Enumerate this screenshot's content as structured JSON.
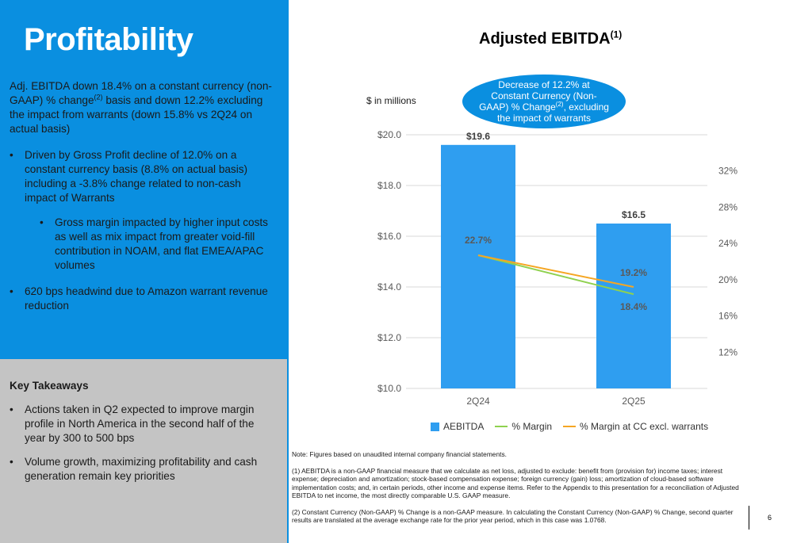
{
  "slide": {
    "title": "Profitability",
    "page_number": "6",
    "colors": {
      "accent_blue": "#0a8fe0",
      "panel_grey": "#c4c4c4",
      "bar": "#2f9ef0",
      "margin_line": "#8fd14f",
      "cc_line": "#f5a623"
    }
  },
  "summary": {
    "intro_1": "Adj. EBITDA down 18.4% on a constant currency (non-GAAP) % change",
    "intro_sup": "(2)",
    "intro_2": " basis and down 12.2% excluding the impact from warrants (down 15.8% vs 2Q24 on actual basis)",
    "bullet_1": "Driven by Gross Profit decline of 12.0% on a constant currency basis (8.8% on actual basis) including a -3.8% change related to non-cash impact of Warrants",
    "sub_bullet_1": "Gross margin impacted by higher input costs as well as mix impact from greater void-fill contribution in NOAM, and flat EMEA/APAC volumes",
    "bullet_2": "620 bps headwind due to Amazon warrant revenue reduction"
  },
  "takeaways": {
    "title": "Key Takeaways",
    "items": [
      "Actions taken in Q2 expected to improve margin profile in North America in the second half of the year by 300 to 500 bps",
      "Volume growth, maximizing profitability and cash generation remain key priorities"
    ]
  },
  "chart_header": {
    "title": "Adjusted EBITDA",
    "title_sup": "(1)",
    "units": "$ in millions",
    "callout_1": "Decrease of 12.2% at Constant Currency (Non-GAAP) % Change",
    "callout_sup": "(2)",
    "callout_2": ", excluding the impact of warrants"
  },
  "chart_data": {
    "type": "bar",
    "categories": [
      "2Q24",
      "2Q25"
    ],
    "series": [
      {
        "name": "AEBITDA",
        "type": "bar",
        "axis": "left",
        "values": [
          19.6,
          16.5
        ],
        "labels": [
          "$19.6",
          "$16.5"
        ]
      },
      {
        "name": "% Margin",
        "type": "line",
        "axis": "right",
        "values": [
          22.7,
          18.4
        ],
        "labels": [
          "22.7%",
          "18.4%"
        ]
      },
      {
        "name": "% Margin at CC excl. warrants",
        "type": "line",
        "axis": "right",
        "values": [
          22.7,
          19.2
        ],
        "labels": [
          "",
          "19.2%"
        ]
      }
    ],
    "y_left": {
      "min": 10,
      "max": 20,
      "ticks": [
        10,
        12,
        14,
        16,
        18,
        20
      ],
      "tick_labels": [
        "$10.0",
        "$12.0",
        "$14.0",
        "$16.0",
        "$18.0",
        "$20.0"
      ]
    },
    "y_right": {
      "min": 8,
      "max": 36,
      "ticks": [
        12,
        16,
        20,
        24,
        28,
        32
      ],
      "tick_labels": [
        "12%",
        "16%",
        "20%",
        "24%",
        "28%",
        "32%"
      ]
    },
    "grid": true,
    "legend": "bottom"
  },
  "notes": {
    "note_0": "Note: Figures based on unaudited internal company financial statements.",
    "note_1": "(1) AEBITDA is a non-GAAP financial measure that we calculate as net loss, adjusted to exclude: benefit from (provision for) income taxes; interest expense; depreciation and amortization; stock-based compensation expense; foreign currency (gain) loss; amortization of cloud-based software implementation costs; and, in certain periods, other income and expense items. Refer to the Appendix to this presentation for a reconciliation of Adjusted EBITDA to net income, the most directly comparable U.S. GAAP measure.",
    "note_2": "(2) Constant Currency (Non-GAAP) % Change is a non-GAAP measure. In calculating the Constant Currency (Non-GAAP) % Change, second quarter results are translated at the average exchange rate for the prior year period, which in this case was 1.0768."
  }
}
